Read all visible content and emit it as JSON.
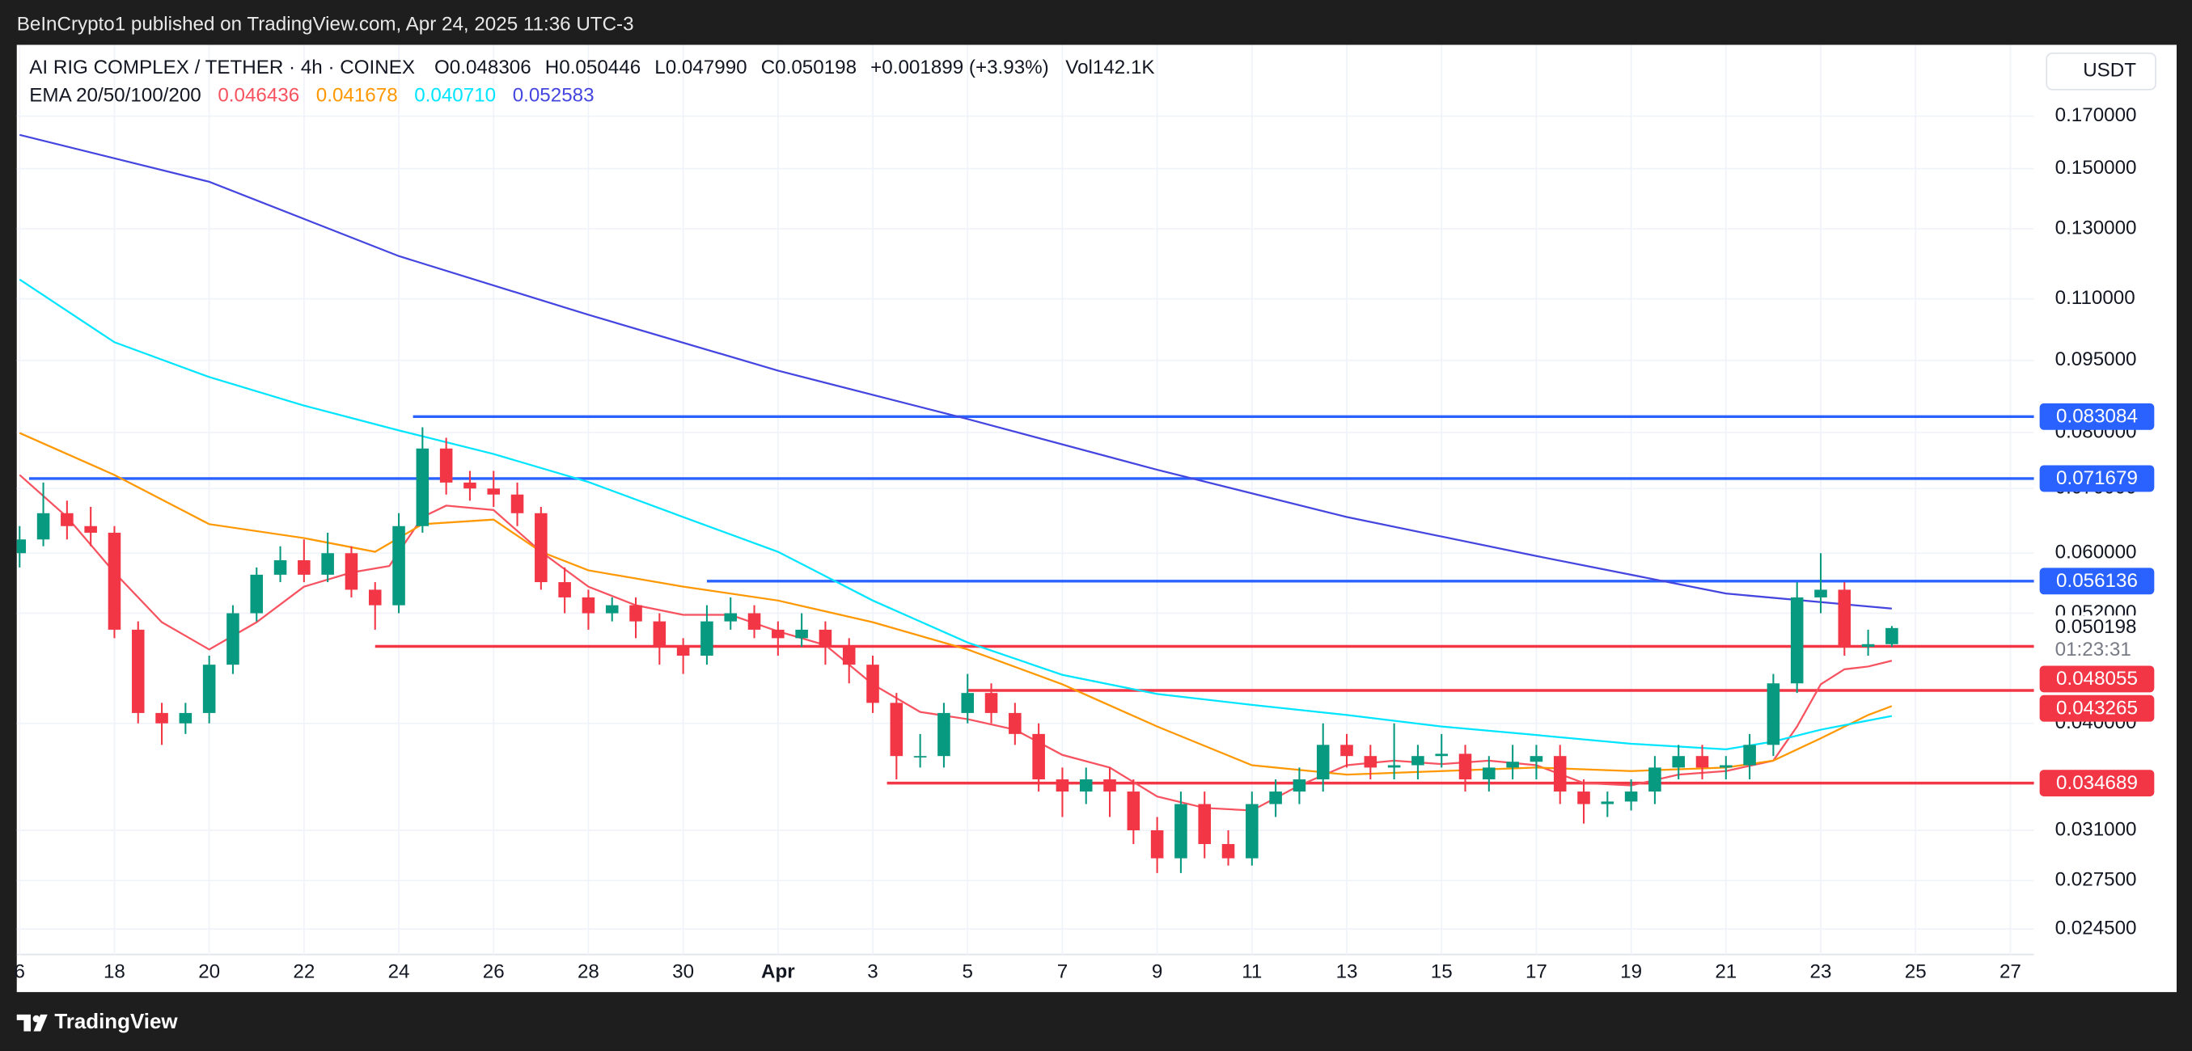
{
  "header": {
    "published": "BeInCrypto1 published on TradingView.com, Apr 24, 2025 11:36 UTC-3",
    "symbol": "AI RIG COMPLEX / TETHER · 4h · COINEX",
    "ohlc": [
      "O0.048306",
      "H0.050446",
      "L0.047990",
      "C0.050198",
      "+0.001899 (+3.93%)",
      "Vol142.1K"
    ],
    "ema_title": "EMA 20/50/100/200",
    "ema_values": [
      "0.046436",
      "0.041678",
      "0.040710",
      "0.052583"
    ]
  },
  "currency": "USDT",
  "countdown": "01:23:31",
  "footer": {
    "brand": "TradingView"
  },
  "chart_data": {
    "type": "candlestick",
    "log_scale": true,
    "grid": true,
    "up_color": "#089981",
    "down_color": "#f23645",
    "xlim": [
      -0.06,
      42.5
    ],
    "ylim": [
      0.02306,
      0.2015
    ],
    "xticks": [
      {
        "value": 0,
        "label": "6"
      },
      {
        "value": 2,
        "label": "18"
      },
      {
        "value": 4,
        "label": "20"
      },
      {
        "value": 6,
        "label": "22"
      },
      {
        "value": 8,
        "label": "24"
      },
      {
        "value": 10,
        "label": "26"
      },
      {
        "value": 12,
        "label": "28"
      },
      {
        "value": 14,
        "label": "30"
      },
      {
        "value": 16,
        "label": "Apr"
      },
      {
        "value": 18,
        "label": "3"
      },
      {
        "value": 20,
        "label": "5"
      },
      {
        "value": 22,
        "label": "7"
      },
      {
        "value": 24,
        "label": "9"
      },
      {
        "value": 26,
        "label": "11"
      },
      {
        "value": 28,
        "label": "13"
      },
      {
        "value": 30,
        "label": "15"
      },
      {
        "value": 32,
        "label": "17"
      },
      {
        "value": 34,
        "label": "19"
      },
      {
        "value": 36,
        "label": "21"
      },
      {
        "value": 38,
        "label": "23"
      },
      {
        "value": 40,
        "label": "25"
      },
      {
        "value": 42,
        "label": "27"
      }
    ],
    "yticks": [
      {
        "value": 0.17,
        "label": "0.170000"
      },
      {
        "value": 0.15,
        "label": "0.150000"
      },
      {
        "value": 0.13,
        "label": "0.130000"
      },
      {
        "value": 0.11,
        "label": "0.110000"
      },
      {
        "value": 0.095,
        "label": "0.095000"
      },
      {
        "value": 0.08,
        "label": "0.080000"
      },
      {
        "value": 0.07,
        "label": "0.070000"
      },
      {
        "value": 0.06,
        "label": "0.060000"
      },
      {
        "value": 0.052,
        "label": "0.052000"
      },
      {
        "value": 0.04,
        "label": "0.040000"
      },
      {
        "value": 0.031,
        "label": "0.031000"
      },
      {
        "value": 0.0275,
        "label": "0.027500"
      },
      {
        "value": 0.0245,
        "label": "0.024500"
      }
    ],
    "candles": [
      {
        "x": 0,
        "open": 0.06,
        "high": 0.064,
        "low": 0.058,
        "close": 0.062
      },
      {
        "x": 0.5,
        "open": 0.062,
        "high": 0.071,
        "low": 0.061,
        "close": 0.066
      },
      {
        "x": 1,
        "open": 0.066,
        "high": 0.068,
        "low": 0.062,
        "close": 0.064
      },
      {
        "x": 1.5,
        "open": 0.064,
        "high": 0.067,
        "low": 0.061,
        "close": 0.063
      },
      {
        "x": 2,
        "open": 0.063,
        "high": 0.064,
        "low": 0.049,
        "close": 0.05
      },
      {
        "x": 2.5,
        "open": 0.05,
        "high": 0.051,
        "low": 0.04,
        "close": 0.041
      },
      {
        "x": 3,
        "open": 0.041,
        "high": 0.042,
        "low": 0.038,
        "close": 0.04
      },
      {
        "x": 3.5,
        "open": 0.04,
        "high": 0.042,
        "low": 0.039,
        "close": 0.041
      },
      {
        "x": 4,
        "open": 0.041,
        "high": 0.047,
        "low": 0.04,
        "close": 0.046
      },
      {
        "x": 4.5,
        "open": 0.046,
        "high": 0.053,
        "low": 0.045,
        "close": 0.052
      },
      {
        "x": 5,
        "open": 0.052,
        "high": 0.058,
        "low": 0.051,
        "close": 0.057
      },
      {
        "x": 5.5,
        "open": 0.057,
        "high": 0.061,
        "low": 0.056,
        "close": 0.059
      },
      {
        "x": 6,
        "open": 0.059,
        "high": 0.062,
        "low": 0.056,
        "close": 0.057
      },
      {
        "x": 6.5,
        "open": 0.057,
        "high": 0.063,
        "low": 0.056,
        "close": 0.06
      },
      {
        "x": 7,
        "open": 0.06,
        "high": 0.061,
        "low": 0.054,
        "close": 0.055
      },
      {
        "x": 7.5,
        "open": 0.055,
        "high": 0.056,
        "low": 0.05,
        "close": 0.053
      },
      {
        "x": 8,
        "open": 0.053,
        "high": 0.066,
        "low": 0.052,
        "close": 0.064
      },
      {
        "x": 8.5,
        "open": 0.064,
        "high": 0.081,
        "low": 0.063,
        "close": 0.077
      },
      {
        "x": 9,
        "open": 0.077,
        "high": 0.079,
        "low": 0.069,
        "close": 0.071
      },
      {
        "x": 9.5,
        "open": 0.071,
        "high": 0.073,
        "low": 0.068,
        "close": 0.07
      },
      {
        "x": 10,
        "open": 0.07,
        "high": 0.073,
        "low": 0.067,
        "close": 0.069
      },
      {
        "x": 10.5,
        "open": 0.069,
        "high": 0.071,
        "low": 0.064,
        "close": 0.066
      },
      {
        "x": 11,
        "open": 0.066,
        "high": 0.067,
        "low": 0.055,
        "close": 0.056
      },
      {
        "x": 11.5,
        "open": 0.056,
        "high": 0.058,
        "low": 0.052,
        "close": 0.054
      },
      {
        "x": 12,
        "open": 0.054,
        "high": 0.055,
        "low": 0.05,
        "close": 0.052
      },
      {
        "x": 12.5,
        "open": 0.052,
        "high": 0.054,
        "low": 0.051,
        "close": 0.053
      },
      {
        "x": 13,
        "open": 0.053,
        "high": 0.054,
        "low": 0.049,
        "close": 0.051
      },
      {
        "x": 13.5,
        "open": 0.051,
        "high": 0.052,
        "low": 0.046,
        "close": 0.048
      },
      {
        "x": 14,
        "open": 0.048,
        "high": 0.049,
        "low": 0.045,
        "close": 0.047
      },
      {
        "x": 14.5,
        "open": 0.047,
        "high": 0.053,
        "low": 0.046,
        "close": 0.051
      },
      {
        "x": 15,
        "open": 0.051,
        "high": 0.054,
        "low": 0.05,
        "close": 0.052
      },
      {
        "x": 15.5,
        "open": 0.052,
        "high": 0.053,
        "low": 0.049,
        "close": 0.05
      },
      {
        "x": 16,
        "open": 0.05,
        "high": 0.051,
        "low": 0.047,
        "close": 0.049
      },
      {
        "x": 16.5,
        "open": 0.049,
        "high": 0.052,
        "low": 0.048,
        "close": 0.05
      },
      {
        "x": 17,
        "open": 0.05,
        "high": 0.051,
        "low": 0.046,
        "close": 0.048
      },
      {
        "x": 17.5,
        "open": 0.048,
        "high": 0.049,
        "low": 0.044,
        "close": 0.046
      },
      {
        "x": 18,
        "open": 0.046,
        "high": 0.047,
        "low": 0.041,
        "close": 0.042
      },
      {
        "x": 18.5,
        "open": 0.042,
        "high": 0.043,
        "low": 0.035,
        "close": 0.037
      },
      {
        "x": 19,
        "open": 0.037,
        "high": 0.039,
        "low": 0.036,
        "close": 0.037
      },
      {
        "x": 19.5,
        "open": 0.037,
        "high": 0.042,
        "low": 0.036,
        "close": 0.041
      },
      {
        "x": 20,
        "open": 0.041,
        "high": 0.045,
        "low": 0.04,
        "close": 0.043
      },
      {
        "x": 20.5,
        "open": 0.043,
        "high": 0.044,
        "low": 0.04,
        "close": 0.041
      },
      {
        "x": 21,
        "open": 0.041,
        "high": 0.042,
        "low": 0.038,
        "close": 0.039
      },
      {
        "x": 21.5,
        "open": 0.039,
        "high": 0.04,
        "low": 0.034,
        "close": 0.035
      },
      {
        "x": 22,
        "open": 0.035,
        "high": 0.036,
        "low": 0.032,
        "close": 0.034
      },
      {
        "x": 22.5,
        "open": 0.034,
        "high": 0.036,
        "low": 0.033,
        "close": 0.035
      },
      {
        "x": 23,
        "open": 0.035,
        "high": 0.036,
        "low": 0.032,
        "close": 0.034
      },
      {
        "x": 23.5,
        "open": 0.034,
        "high": 0.035,
        "low": 0.03,
        "close": 0.031
      },
      {
        "x": 24,
        "open": 0.031,
        "high": 0.032,
        "low": 0.028,
        "close": 0.029
      },
      {
        "x": 24.5,
        "open": 0.029,
        "high": 0.034,
        "low": 0.028,
        "close": 0.033
      },
      {
        "x": 25,
        "open": 0.033,
        "high": 0.034,
        "low": 0.029,
        "close": 0.03
      },
      {
        "x": 25.5,
        "open": 0.03,
        "high": 0.031,
        "low": 0.0285,
        "close": 0.029
      },
      {
        "x": 26,
        "open": 0.029,
        "high": 0.034,
        "low": 0.0285,
        "close": 0.033
      },
      {
        "x": 26.5,
        "open": 0.033,
        "high": 0.035,
        "low": 0.032,
        "close": 0.034
      },
      {
        "x": 27,
        "open": 0.034,
        "high": 0.036,
        "low": 0.033,
        "close": 0.035
      },
      {
        "x": 27.5,
        "open": 0.035,
        "high": 0.04,
        "low": 0.034,
        "close": 0.038
      },
      {
        "x": 28,
        "open": 0.038,
        "high": 0.039,
        "low": 0.036,
        "close": 0.037
      },
      {
        "x": 28.5,
        "open": 0.037,
        "high": 0.038,
        "low": 0.035,
        "close": 0.036
      },
      {
        "x": 29,
        "open": 0.036,
        "high": 0.04,
        "low": 0.035,
        "close": 0.0362
      },
      {
        "x": 29.5,
        "open": 0.0362,
        "high": 0.038,
        "low": 0.035,
        "close": 0.037
      },
      {
        "x": 30,
        "open": 0.037,
        "high": 0.039,
        "low": 0.036,
        "close": 0.0372
      },
      {
        "x": 30.5,
        "open": 0.0372,
        "high": 0.038,
        "low": 0.034,
        "close": 0.035
      },
      {
        "x": 31,
        "open": 0.035,
        "high": 0.037,
        "low": 0.034,
        "close": 0.036
      },
      {
        "x": 31.5,
        "open": 0.036,
        "high": 0.038,
        "low": 0.035,
        "close": 0.0365
      },
      {
        "x": 32,
        "open": 0.0365,
        "high": 0.038,
        "low": 0.035,
        "close": 0.037
      },
      {
        "x": 32.5,
        "open": 0.037,
        "high": 0.038,
        "low": 0.033,
        "close": 0.034
      },
      {
        "x": 33,
        "open": 0.034,
        "high": 0.035,
        "low": 0.0315,
        "close": 0.033
      },
      {
        "x": 33.5,
        "open": 0.033,
        "high": 0.034,
        "low": 0.032,
        "close": 0.0332
      },
      {
        "x": 34,
        "open": 0.0332,
        "high": 0.035,
        "low": 0.0325,
        "close": 0.034
      },
      {
        "x": 34.5,
        "open": 0.034,
        "high": 0.037,
        "low": 0.033,
        "close": 0.036
      },
      {
        "x": 35,
        "open": 0.036,
        "high": 0.038,
        "low": 0.035,
        "close": 0.037
      },
      {
        "x": 35.5,
        "open": 0.037,
        "high": 0.038,
        "low": 0.035,
        "close": 0.036
      },
      {
        "x": 36,
        "open": 0.036,
        "high": 0.037,
        "low": 0.035,
        "close": 0.0362
      },
      {
        "x": 36.5,
        "open": 0.0362,
        "high": 0.039,
        "low": 0.035,
        "close": 0.038
      },
      {
        "x": 37,
        "open": 0.038,
        "high": 0.045,
        "low": 0.037,
        "close": 0.044
      },
      {
        "x": 37.5,
        "open": 0.044,
        "high": 0.056,
        "low": 0.043,
        "close": 0.054
      },
      {
        "x": 38,
        "open": 0.054,
        "high": 0.06,
        "low": 0.052,
        "close": 0.055
      },
      {
        "x": 38.5,
        "open": 0.055,
        "high": 0.056,
        "low": 0.047,
        "close": 0.048
      },
      {
        "x": 39,
        "open": 0.048,
        "high": 0.05,
        "low": 0.047,
        "close": 0.048306
      },
      {
        "x": 39.5,
        "open": 0.048306,
        "high": 0.050446,
        "low": 0.04799,
        "close": 0.050198
      }
    ],
    "emas": [
      {
        "color": "#f7525f",
        "x": [
          0,
          1,
          2,
          3,
          4,
          5,
          6,
          7,
          7.8,
          8.5,
          9,
          10,
          11,
          12,
          13,
          14,
          15,
          16,
          17,
          18,
          19,
          20,
          21,
          22,
          23,
          24,
          25,
          26,
          27,
          28,
          29,
          30,
          31,
          32,
          33,
          34,
          35,
          36,
          37,
          37.5,
          38,
          38.5,
          39,
          39.5
        ],
        "values": [
          0.0723,
          0.0654,
          0.0573,
          0.0509,
          0.0477,
          0.0509,
          0.0554,
          0.0573,
          0.0582,
          0.0654,
          0.0672,
          0.0665,
          0.0602,
          0.0554,
          0.053,
          0.0518,
          0.0518,
          0.0498,
          0.0482,
          0.0439,
          0.0411,
          0.0404,
          0.0394,
          0.0371,
          0.036,
          0.0336,
          0.0327,
          0.0325,
          0.0345,
          0.0362,
          0.0366,
          0.0363,
          0.0366,
          0.0362,
          0.0347,
          0.0345,
          0.0354,
          0.0357,
          0.0366,
          0.0397,
          0.0439,
          0.0455,
          0.0458,
          0.046436
        ]
      },
      {
        "color": "#ff9800",
        "x": [
          0,
          2,
          4,
          6,
          7.5,
          8.5,
          10,
          11,
          12,
          14,
          16,
          18,
          20,
          22,
          24,
          26,
          28,
          30,
          32,
          34,
          36,
          37,
          38,
          39,
          39.5
        ],
        "values": [
          0.0799,
          0.0723,
          0.0643,
          0.0622,
          0.0602,
          0.0643,
          0.065,
          0.0602,
          0.0576,
          0.0554,
          0.0536,
          0.0509,
          0.0477,
          0.0439,
          0.0397,
          0.0362,
          0.0354,
          0.0357,
          0.036,
          0.0357,
          0.036,
          0.0366,
          0.0386,
          0.0408,
          0.041678
        ]
      },
      {
        "color": "#00e5ff",
        "x": [
          0,
          2,
          4,
          6,
          8,
          10,
          12,
          14,
          16,
          18,
          20,
          22,
          24,
          26,
          28,
          30,
          32,
          34,
          36,
          37,
          38,
          39.5
        ],
        "values": [
          0.1152,
          0.0992,
          0.0913,
          0.0853,
          0.0804,
          0.076,
          0.0711,
          0.0654,
          0.0602,
          0.0536,
          0.0485,
          0.0449,
          0.0429,
          0.0418,
          0.0408,
          0.0397,
          0.0389,
          0.0381,
          0.0376,
          0.0383,
          0.0394,
          0.04071
        ]
      },
      {
        "color": "#4545e0",
        "x": [
          0,
          4,
          8,
          12,
          16,
          20,
          24,
          28,
          32,
          36,
          39.5
        ],
        "values": [
          0.1626,
          0.1454,
          0.1218,
          0.1059,
          0.0927,
          0.0826,
          0.0732,
          0.0654,
          0.0596,
          0.0545,
          0.052583
        ]
      }
    ],
    "levels": [
      {
        "value": 0.083084,
        "color": "#2962ff",
        "from": 8.3
      },
      {
        "value": 0.071679,
        "color": "#2962ff",
        "from": 0.2
      },
      {
        "value": 0.056136,
        "color": "#2962ff",
        "from": 14.5
      },
      {
        "value": 0.048055,
        "color": "#f23645",
        "from": 7.5
      },
      {
        "value": 0.043265,
        "color": "#f23645",
        "from": 20.0
      },
      {
        "value": 0.034689,
        "color": "#f23645",
        "from": 18.3
      }
    ]
  }
}
